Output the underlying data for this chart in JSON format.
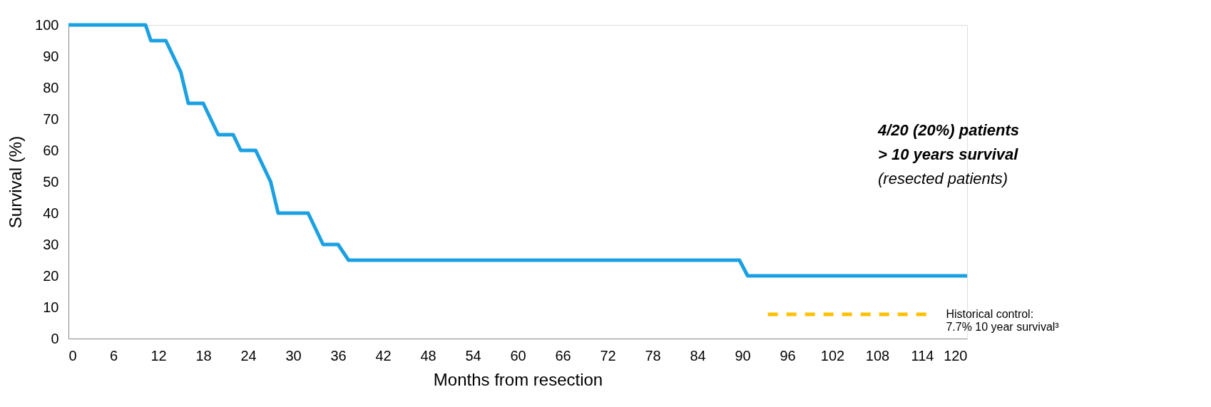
{
  "chart_data": {
    "type": "line",
    "xlabel": "Months from resection",
    "ylabel": "Survival (%)",
    "xlim": [
      0,
      120
    ],
    "xticks": [
      0,
      6,
      12,
      18,
      24,
      30,
      36,
      42,
      48,
      54,
      60,
      66,
      72,
      78,
      84,
      90,
      96,
      102,
      108,
      114,
      120
    ],
    "ylim": [
      0,
      100
    ],
    "yticks": [
      0,
      10,
      20,
      30,
      40,
      50,
      60,
      70,
      80,
      90,
      100
    ],
    "grid": false,
    "marker": "none",
    "series": [
      {
        "color": "#1ba1e2",
        "line_style": "solid",
        "x": [
          0,
          10.3,
          11,
          13,
          15,
          16,
          18,
          20,
          22,
          23,
          25,
          27,
          28,
          32,
          34,
          36,
          37.4,
          89.6,
          90.7,
          120
        ],
        "values": [
          100,
          100,
          95,
          95,
          85,
          75,
          75,
          65,
          65,
          60,
          60,
          50,
          40,
          40,
          30,
          30,
          25,
          25,
          20,
          20
        ]
      },
      {
        "name": "Historical control:\n 7.7% 10 year survival³",
        "color": "#ffc000",
        "line_style": "dashed",
        "x": [
          93.4,
          114.8
        ],
        "values": [
          7.7,
          7.7
        ]
      }
    ],
    "annotations": [
      "4/20 (20%) patients",
      "> 10 years survival",
      "(resected patients)"
    ]
  }
}
